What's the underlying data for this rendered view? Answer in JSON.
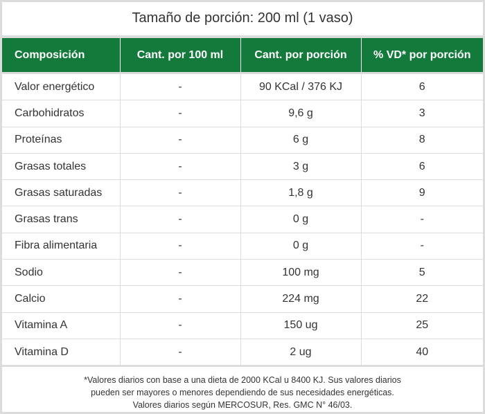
{
  "title": "Tamaño de porción: 200 ml (1 vaso)",
  "columns": [
    "Composición",
    "Cant. por 100 ml",
    "Cant. por porción",
    "% VD* por porción"
  ],
  "rows": [
    [
      "Valor energético",
      "-",
      "90 KCal / 376 KJ",
      "6"
    ],
    [
      "Carbohidratos",
      "-",
      "9,6 g",
      "3"
    ],
    [
      "Proteínas",
      "-",
      "6 g",
      "8"
    ],
    [
      "Grasas totales",
      "-",
      "3 g",
      "6"
    ],
    [
      "Grasas saturadas",
      "-",
      "1,8 g",
      "9"
    ],
    [
      "Grasas trans",
      "-",
      "0 g",
      "-"
    ],
    [
      "Fibra alimentaria",
      "-",
      "0 g",
      "-"
    ],
    [
      "Sodio",
      "-",
      "100 mg",
      "5"
    ],
    [
      "Calcio",
      "-",
      "224 mg",
      "22"
    ],
    [
      "Vitamina A",
      "-",
      "150 ug",
      "25"
    ],
    [
      "Vitamina D",
      "-",
      "2 ug",
      "40"
    ]
  ],
  "footnote": [
    "*Valores diarios con base a una dieta de 2000 KCal u 8400 KJ. Sus valores diarios",
    "pueden ser mayores o menores dependiendo de sus necesidades energéticas.",
    "Valores diarios según MERCOSUR, Res. GMC N° 46/03."
  ],
  "colors": {
    "header_bg": "#147a3b",
    "header_text": "#ffffff",
    "border": "#dcdcdc",
    "text": "#333333"
  }
}
